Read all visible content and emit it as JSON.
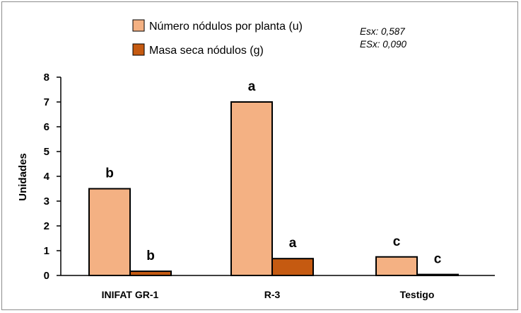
{
  "chart_data": {
    "type": "bar",
    "categories": [
      "INIFAT GR-1",
      "R-3",
      "Testigo"
    ],
    "series": [
      {
        "name": "Número nódulos por planta (u)",
        "values": [
          3.5,
          7.0,
          0.75
        ],
        "labels": [
          "b",
          "a",
          "c"
        ],
        "color": "#f4b183"
      },
      {
        "name": "Masa seca nódulos (g)",
        "values": [
          0.17,
          0.68,
          0.04
        ],
        "labels": [
          "b",
          "a",
          "c"
        ],
        "color": "#c55a11"
      }
    ],
    "ylabel": "Unidades",
    "xlabel": "",
    "ylim": [
      0,
      8
    ],
    "yticks": [
      0,
      1,
      2,
      3,
      4,
      5,
      6,
      7,
      8
    ],
    "grid": false,
    "legend_position": "top-center",
    "annotations": [
      "Esx: 0,587",
      "ESx: 0,090"
    ]
  }
}
